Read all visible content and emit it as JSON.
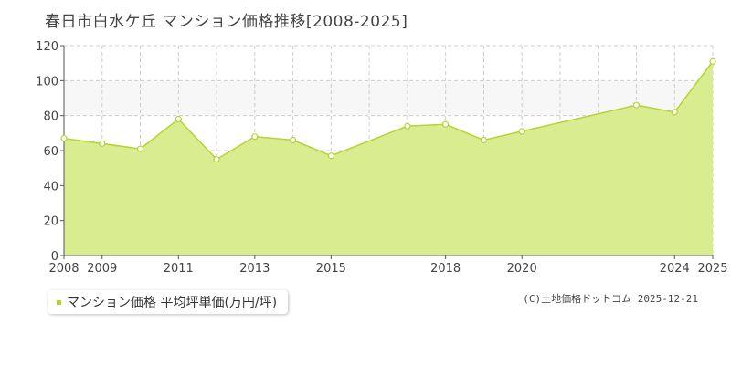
{
  "title": "春日市白水ケ丘 マンション価格推移[2008-2025]",
  "legend": {
    "label": "マンション価格 平均坪単価(万円/坪)"
  },
  "copyright": "(C)土地価格ドットコム 2025-12-21",
  "colors": {
    "fill": "#d9ec8f",
    "line": "#b5d334",
    "point_fill": "#ffffff",
    "band": "#f7f7f7",
    "grid": "#cccccc"
  },
  "chart_data": {
    "type": "area",
    "x": [
      2008,
      2009,
      2010,
      2011,
      2012,
      2013,
      2014,
      2015,
      2016,
      2017,
      2018,
      2019,
      2020,
      2021,
      2022,
      2023,
      2024,
      2025
    ],
    "values": [
      67,
      64,
      61,
      78,
      55,
      68,
      66,
      57,
      null,
      74,
      75,
      66,
      71,
      null,
      null,
      86,
      82,
      111
    ],
    "x_tick_labels": [
      "2008",
      "2009",
      "2011",
      "2013",
      "2015",
      "2018",
      "2020",
      "2024",
      "2025"
    ],
    "y_ticks": [
      0,
      20,
      40,
      60,
      80,
      100,
      120
    ],
    "ylim": [
      0,
      120
    ],
    "xlim": [
      2008,
      2025
    ],
    "grid": true,
    "series_name": "マンション価格 平均坪単価(万円/坪)"
  }
}
